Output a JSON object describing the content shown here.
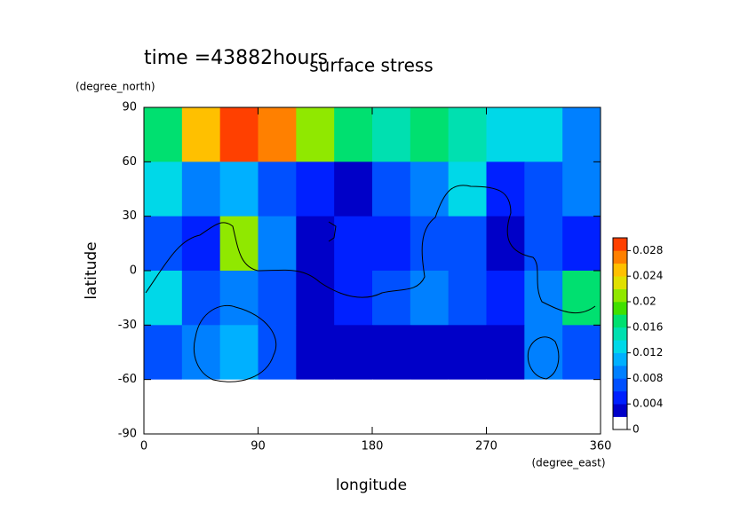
{
  "chart_data": {
    "type": "contour",
    "title": "surface stress",
    "subtitle": "time =43882hours",
    "x_label": "longitude",
    "x_unit": "(degree_east)",
    "y_label": "latitude",
    "y_unit": "(degree_north)",
    "xlim": [
      0,
      360
    ],
    "ylim": [
      -90,
      90
    ],
    "xticks": [
      0,
      90,
      180,
      270,
      360
    ],
    "yticks": [
      -90,
      -60,
      -30,
      0,
      30,
      60,
      90
    ],
    "x": [
      15,
      45,
      75,
      105,
      135,
      165,
      195,
      225,
      255,
      285,
      315,
      345
    ],
    "y": [
      75,
      45,
      15,
      -15,
      -45,
      -75
    ],
    "z": [
      [
        0.016,
        0.024,
        0.028,
        0.026,
        0.02,
        0.016,
        0.014,
        0.016,
        0.014,
        0.012,
        0.012,
        0.008
      ],
      [
        0.012,
        0.008,
        0.01,
        0.006,
        0.004,
        0.002,
        0.006,
        0.008,
        0.012,
        0.004,
        0.006,
        0.008
      ],
      [
        0.006,
        0.004,
        0.02,
        0.008,
        0.002,
        0.004,
        0.004,
        0.006,
        0.006,
        0.002,
        0.006,
        0.004
      ],
      [
        0.012,
        0.006,
        0.008,
        0.006,
        0.002,
        0.004,
        0.006,
        0.008,
        0.006,
        0.004,
        0.008,
        0.016
      ],
      [
        0.006,
        0.008,
        0.01,
        0.006,
        0.002,
        0.002,
        0.002,
        0.002,
        0.002,
        0.002,
        0.008,
        0.006
      ],
      [
        0,
        0,
        0,
        0,
        0,
        0,
        0,
        0,
        0,
        0,
        0,
        0
      ]
    ],
    "colorbar": {
      "lim": [
        0,
        0.03
      ],
      "ticks": [
        0,
        0.004,
        0.008,
        0.012,
        0.016,
        0.02,
        0.024,
        0.028
      ],
      "colors": [
        "#ffffff",
        "#0000c8",
        "#0020ff",
        "#0050ff",
        "#0080ff",
        "#00b0ff",
        "#00d8e8",
        "#00e0b0",
        "#00e070",
        "#40e000",
        "#90e800",
        "#e0e000",
        "#ffc000",
        "#ff8000",
        "#ff4000"
      ]
    }
  }
}
